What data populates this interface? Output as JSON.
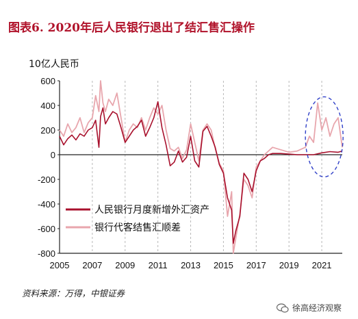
{
  "title": "图表6. 2020年后人民银行退出了结汇售汇操作",
  "source": "资料来源：万得，中银证券",
  "watermark": "徐高经济观察",
  "colors": {
    "pboc": "#a8102c",
    "banks": "#e8a6ad",
    "ellipse": "#2f3fc8",
    "title": "#b0122a"
  },
  "chart_data": {
    "type": "line",
    "title": "",
    "ylabel": "10亿人民币",
    "xlabel": "",
    "xlim": [
      2005,
      2022.25
    ],
    "ylim": [
      -800,
      600
    ],
    "xticks": [
      2005,
      2007,
      2009,
      2011,
      2013,
      2015,
      2017,
      2019,
      2021
    ],
    "yticks": [
      -800,
      -600,
      -400,
      -200,
      0,
      200,
      400,
      600
    ],
    "grid": "x-dashed-vertical",
    "legend": "lower-left",
    "annotations": [
      {
        "type": "dashed-ellipse",
        "x_range": [
          2020.0,
          2022.3
        ],
        "y_range": [
          -180,
          470
        ]
      }
    ],
    "series": [
      {
        "name": "人民银行月度新增外汇资产",
        "color": "#a8102c",
        "x": [
          2005.0,
          2005.25,
          2005.5,
          2005.75,
          2006.0,
          2006.25,
          2006.5,
          2006.75,
          2007.0,
          2007.2,
          2007.4,
          2007.5,
          2007.65,
          2007.8,
          2008.0,
          2008.25,
          2008.5,
          2008.75,
          2009.0,
          2009.25,
          2009.5,
          2009.75,
          2010.0,
          2010.25,
          2010.5,
          2010.75,
          2011.0,
          2011.25,
          2011.5,
          2011.75,
          2012.0,
          2012.25,
          2012.5,
          2012.75,
          2013.0,
          2013.25,
          2013.5,
          2013.75,
          2014.0,
          2014.25,
          2014.5,
          2014.75,
          2015.0,
          2015.25,
          2015.5,
          2015.6,
          2015.75,
          2016.0,
          2016.25,
          2016.5,
          2016.75,
          2017.0,
          2017.25,
          2017.5,
          2017.75,
          2018.0,
          2018.5,
          2019.0,
          2019.5,
          2020.0,
          2020.5,
          2021.0,
          2021.5,
          2022.0,
          2022.25
        ],
        "values": [
          150,
          80,
          130,
          160,
          120,
          170,
          150,
          200,
          220,
          280,
          60,
          310,
          380,
          250,
          300,
          350,
          330,
          220,
          100,
          150,
          200,
          230,
          280,
          150,
          220,
          300,
          430,
          220,
          80,
          -90,
          -60,
          30,
          -60,
          -20,
          150,
          -50,
          -100,
          190,
          230,
          150,
          60,
          -80,
          -150,
          -350,
          -450,
          -720,
          -620,
          -500,
          -150,
          -200,
          -300,
          -130,
          -50,
          -30,
          0,
          10,
          10,
          5,
          0,
          0,
          0,
          15,
          25,
          20,
          30
        ]
      },
      {
        "name": "银行代客结售汇顺差",
        "color": "#e8a6ad",
        "x": [
          2005.0,
          2005.25,
          2005.5,
          2005.75,
          2006.0,
          2006.25,
          2006.5,
          2006.75,
          2007.0,
          2007.2,
          2007.4,
          2007.5,
          2007.65,
          2007.8,
          2008.0,
          2008.25,
          2008.5,
          2008.75,
          2009.0,
          2009.25,
          2009.5,
          2009.75,
          2010.0,
          2010.25,
          2010.5,
          2010.75,
          2011.0,
          2011.25,
          2011.5,
          2011.75,
          2012.0,
          2012.25,
          2012.5,
          2012.75,
          2013.0,
          2013.25,
          2013.5,
          2013.75,
          2014.0,
          2014.25,
          2014.5,
          2014.75,
          2015.0,
          2015.25,
          2015.5,
          2015.6,
          2015.75,
          2016.0,
          2016.25,
          2016.5,
          2016.75,
          2017.0,
          2017.25,
          2017.5,
          2017.75,
          2018.0,
          2018.5,
          2019.0,
          2019.5,
          2020.0,
          2020.25,
          2020.5,
          2020.75,
          2021.0,
          2021.25,
          2021.5,
          2021.75,
          2022.0,
          2022.25
        ],
        "values": [
          200,
          150,
          250,
          180,
          220,
          300,
          180,
          260,
          300,
          480,
          350,
          600,
          420,
          350,
          450,
          400,
          500,
          300,
          100,
          200,
          250,
          220,
          300,
          200,
          300,
          380,
          330,
          400,
          200,
          50,
          30,
          60,
          -30,
          40,
          250,
          100,
          -50,
          200,
          250,
          200,
          50,
          -70,
          -130,
          -500,
          -300,
          -800,
          -680,
          -480,
          -200,
          -250,
          -350,
          -100,
          -50,
          0,
          30,
          60,
          40,
          20,
          30,
          60,
          150,
          100,
          420,
          200,
          300,
          150,
          250,
          300,
          60
        ]
      }
    ]
  }
}
